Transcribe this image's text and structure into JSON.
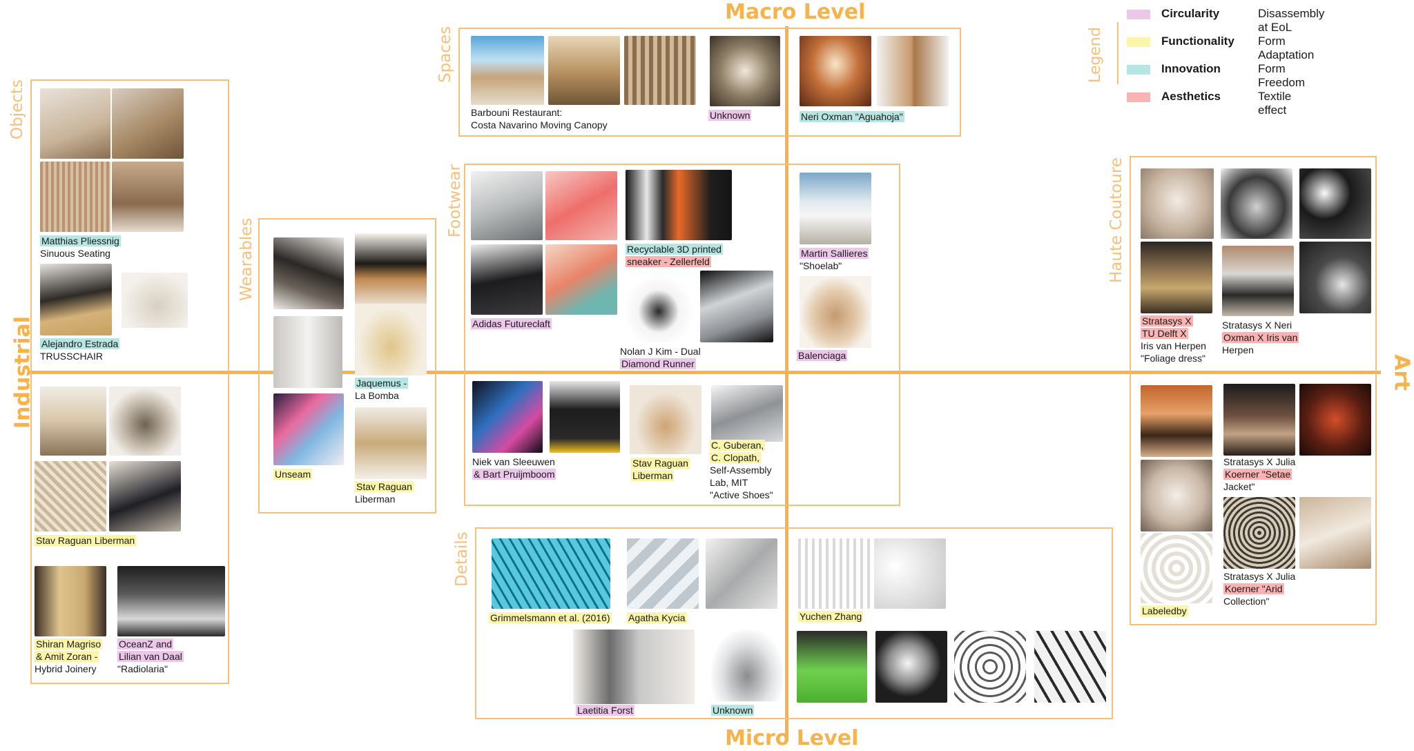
{
  "axes": {
    "top": "Macro Level",
    "bottom": "Micro Level",
    "left": "Industrial",
    "right": "Art"
  },
  "legend": {
    "title": "Legend",
    "items": [
      {
        "name": "Circularity",
        "description": "Disassembly at EoL",
        "color": "#ecc7ea"
      },
      {
        "name": "Functionality",
        "description": "Form Adaptation",
        "color": "#fbf5a9"
      },
      {
        "name": "Innovation",
        "description": "Form Freedom",
        "color": "#b7e5e2"
      },
      {
        "name": "Aesthetics",
        "description": "Textile effect",
        "color": "#f9b3b3"
      }
    ]
  },
  "sections": {
    "objects": "Objects",
    "wearables": "Wearables",
    "spaces": "Spaces",
    "footwear": "Footwear",
    "details": "Details",
    "haute_couture": "Haute Coutoure"
  },
  "labels": {
    "pliessnig_1": "Matthias Pliessnig",
    "pliessnig_2": "Sinuous Seating",
    "estrada_1": "Alejandro Estrada",
    "estrada_2": "TRUSSCHAIR",
    "stav_objects": "Stav Raguan Liberman",
    "shiran_1": "Shiran Magriso",
    "shiran_2": "& Amit Zoran -",
    "shiran_3": "Hybrid Joinery",
    "oceanz_1": "OceanZ and",
    "oceanz_2": "Lilian van Daal",
    "oceanz_3": "\"Radiolaria\"",
    "unseam": "Unseam",
    "jaquemus_1": "Jaquemus -",
    "jaquemus_2": "La Bomba",
    "stav_wear_1": "Stav Raguan",
    "stav_wear_2": "Liberman",
    "barbouni_1": "Barbouni Restaurant:",
    "barbouni_2": "Costa Navarino Moving Canopy",
    "unknown_spaces": "Unknown",
    "oxman_aguahoja": "Neri Oxman \"Aguahoja\"",
    "adidas": "Adidas Futurecłaft",
    "zellerfeld_1": "Recyclable 3D printed",
    "zellerfeld_2": "sneaker - Zellerfeld",
    "nolan_1": "Nolan J Kim - Dual",
    "nolan_2": "Diamond Runner",
    "sallieres_1": "Martin Sallieres",
    "sallieres_2": "\"Shoelab\"",
    "balenciaga": "Balenciaga",
    "niek_1": "Niek van Sleeuwen",
    "niek_2": "& Bart Pruijmboom",
    "stav_foot_1": "Stav Raguan",
    "stav_foot_2": "Liberman",
    "guberan_1": "C. Guberan,",
    "guberan_2": "C. Clopath,",
    "guberan_3": "Self-Assembly",
    "guberan_4": "Lab, MIT",
    "guberan_5": "\"Active Shoes\"",
    "grimmelsmann": "Grimmelsmann et al. (2016)",
    "agatha": "Agatha Kycia",
    "laetitia": "Laetitia Forst",
    "unknown_details": "Unknown",
    "yuchen": "Yuchen Zhang",
    "tudelft_1": "Stratasys X",
    "tudelft_2": "TU Delft X",
    "tudelft_3": "Iris van Herpen",
    "tudelft_4": "\"Foliage dress\"",
    "oxman_iris_1": "Stratasys X Neri",
    "oxman_iris_2": "Oxman X Iris van",
    "oxman_iris_3": "Herpen",
    "setae_1": "Stratasys X Julia",
    "setae_2": "Koerner \"Setae",
    "setae_3": "Jacket\"",
    "arid_1": "Stratasys X Julia",
    "arid_2": "Koerner \"Arid",
    "arid_3": "Collection\"",
    "labeledby": "Labeledby"
  }
}
